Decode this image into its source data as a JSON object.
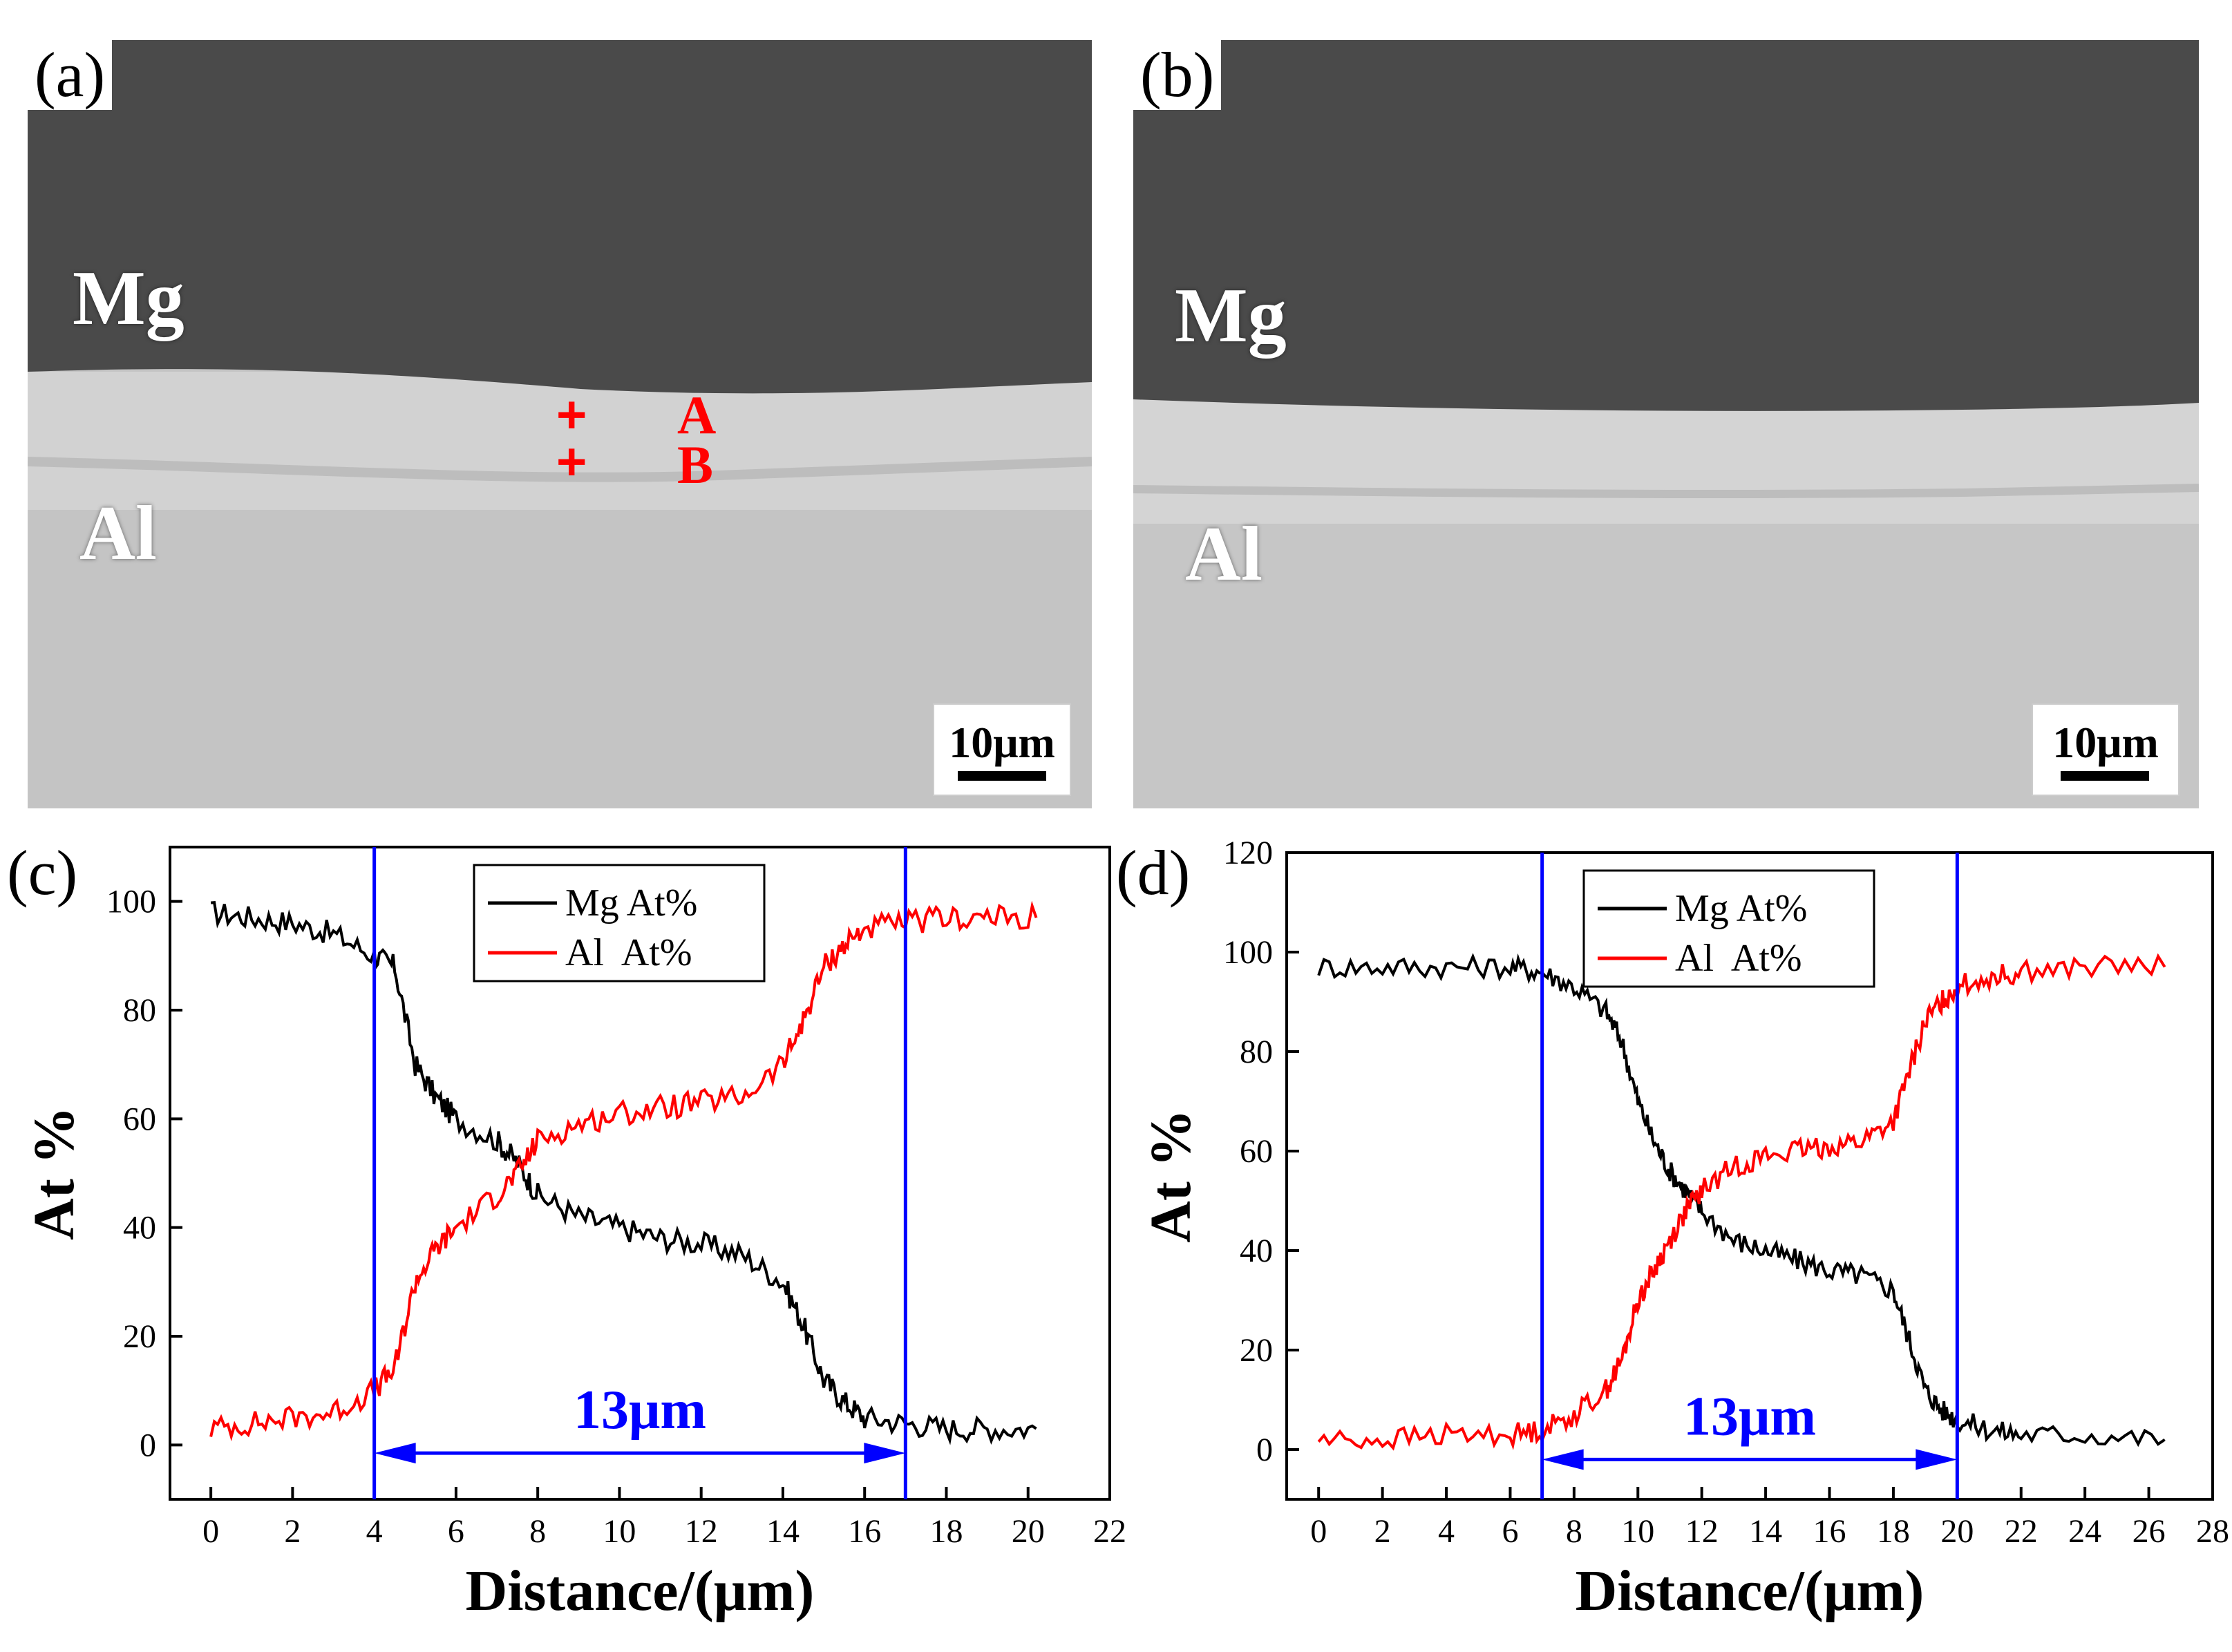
{
  "panels": {
    "a": {
      "tag": "(a)",
      "top_material": "Mg",
      "bottom_material": "Al",
      "points": [
        {
          "label": "A"
        },
        {
          "label": "B"
        }
      ],
      "scale_bar": "10μm"
    },
    "b": {
      "tag": "(b)",
      "top_material": "Mg",
      "bottom_material": "Al",
      "scale_bar": "10μm"
    }
  },
  "chart_data": [
    {
      "id": "c",
      "tag": "(c)",
      "type": "line",
      "xlabel": "Distance/(μm)",
      "ylabel": "At %",
      "xlim": [
        -1,
        22
      ],
      "ylim": [
        -10,
        110
      ],
      "xticks": [
        0,
        2,
        4,
        6,
        8,
        10,
        12,
        14,
        16,
        18,
        20,
        22
      ],
      "yticks": [
        0,
        20,
        40,
        60,
        80,
        100
      ],
      "grid": false,
      "legend_position": "top-center",
      "series": [
        {
          "name": "Mg At%",
          "color": "#000000",
          "x": [
            0,
            1,
            2,
            3,
            4,
            4.5,
            5,
            5.5,
            6,
            7,
            7.5,
            8,
            9,
            10,
            11,
            12,
            13,
            14,
            14.5,
            15,
            15.5,
            16,
            17,
            18,
            19,
            20.2
          ],
          "y": [
            98,
            97,
            96,
            94,
            90,
            88,
            70,
            64,
            60,
            56,
            52,
            46,
            42,
            40,
            38,
            37,
            35,
            30,
            22,
            12,
            8,
            5,
            4,
            3,
            3,
            3
          ]
        },
        {
          "name": "Al  At%",
          "color": "#ff0000",
          "x": [
            0,
            1,
            2,
            3,
            4,
            4.5,
            5,
            5.5,
            6,
            7,
            7.5,
            8,
            9,
            10,
            11,
            12,
            13,
            14,
            14.5,
            15,
            15.5,
            16,
            17,
            18,
            19,
            20.2
          ],
          "y": [
            3,
            4,
            5,
            6,
            10,
            14,
            30,
            36,
            40,
            46,
            50,
            56,
            59,
            61,
            62,
            63,
            64,
            70,
            78,
            88,
            92,
            95,
            96,
            97,
            97,
            97
          ]
        }
      ],
      "markers": [
        {
          "x": 4
        },
        {
          "x": 17
        }
      ],
      "annotation": {
        "text": "13μm",
        "from": 4,
        "to": 17,
        "y": -1.5
      }
    },
    {
      "id": "d",
      "tag": "(d)",
      "type": "line",
      "xlabel": "Distance/(μm)",
      "ylabel": "At %",
      "xlim": [
        -1,
        28
      ],
      "ylim": [
        -10,
        120
      ],
      "xticks": [
        0,
        2,
        4,
        6,
        8,
        10,
        12,
        14,
        16,
        18,
        20,
        22,
        24,
        26,
        28
      ],
      "yticks": [
        0,
        20,
        40,
        60,
        80,
        100,
        120
      ],
      "grid": false,
      "legend_position": "top-center",
      "series": [
        {
          "name": "Mg At%",
          "color": "#000000",
          "x": [
            0,
            2,
            4,
            6,
            7,
            8,
            9,
            9.5,
            10,
            10.5,
            11,
            11.5,
            12,
            13,
            14,
            15,
            16,
            17,
            18,
            18.5,
            19,
            19.5,
            20,
            21,
            22,
            24,
            26.5
          ],
          "y": [
            97,
            97,
            97,
            97,
            96,
            93,
            88,
            82,
            70,
            62,
            56,
            52,
            48,
            42,
            40,
            38,
            36,
            35,
            32,
            22,
            12,
            8,
            6,
            4,
            3,
            3,
            2
          ]
        },
        {
          "name": "Al  At%",
          "color": "#ff0000",
          "x": [
            0,
            2,
            4,
            6,
            7,
            8,
            9,
            9.5,
            10,
            10.5,
            11,
            11.5,
            12,
            13,
            14,
            15,
            16,
            17,
            18,
            18.5,
            19,
            19.5,
            20,
            21,
            22,
            24,
            26.5
          ],
          "y": [
            2,
            2,
            3,
            3,
            4,
            7,
            12,
            18,
            30,
            36,
            42,
            48,
            52,
            57,
            59,
            60,
            61,
            62,
            66,
            76,
            86,
            90,
            93,
            95,
            96,
            97,
            97
          ]
        }
      ],
      "markers": [
        {
          "x": 7
        },
        {
          "x": 20
        }
      ],
      "annotation": {
        "text": "13μm",
        "from": 7,
        "to": 20,
        "y": -2
      }
    }
  ]
}
